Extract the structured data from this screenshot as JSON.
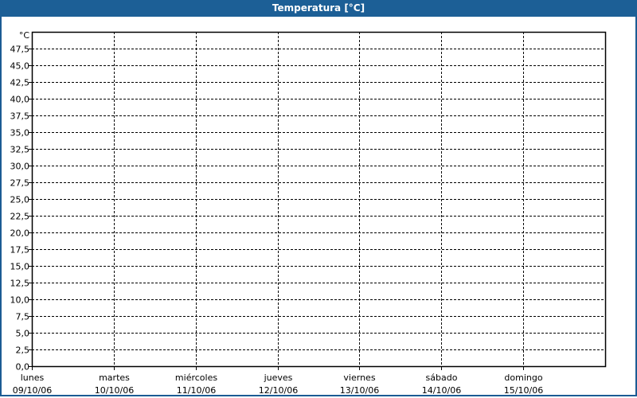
{
  "chart_data": {
    "type": "line",
    "title": "Temperatura [°C]",
    "ylabel": "°C",
    "ylim": [
      0,
      50
    ],
    "ytick_step": 2.5,
    "yticks": [
      "0,0",
      "2,5",
      "5,0",
      "7,5",
      "10,0",
      "12,5",
      "15,0",
      "17,5",
      "20,0",
      "22,5",
      "25,0",
      "27,5",
      "30,0",
      "32,5",
      "35,0",
      "37,5",
      "40,0",
      "42,5",
      "45,0",
      "47,5"
    ],
    "categories": [
      {
        "day": "lunes",
        "date": "09/10/06"
      },
      {
        "day": "martes",
        "date": "10/10/06"
      },
      {
        "day": "miércoles",
        "date": "11/10/06"
      },
      {
        "day": "jueves",
        "date": "12/10/06"
      },
      {
        "day": "viernes",
        "date": "13/10/06"
      },
      {
        "day": "sábado",
        "date": "14/10/06"
      },
      {
        "day": "domingo",
        "date": "15/10/06"
      }
    ],
    "series": [],
    "grid": true,
    "colors": {
      "header": "#1c5f96",
      "grid": "#000000"
    }
  }
}
